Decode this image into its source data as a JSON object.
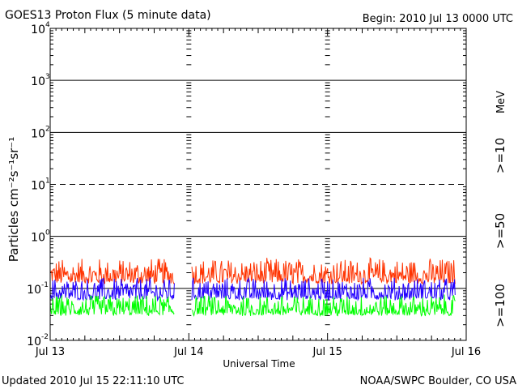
{
  "chart_data": {
    "type": "line",
    "title": "GOES13 Proton Flux (5 minute data)",
    "begin_label": "Begin: 2010 Jul 13 0000 UTC",
    "ylabel": "Particles cm⁻²s⁻¹sr⁻¹",
    "xlabel": "Universal Time",
    "y_scale": "log",
    "ylim": [
      0.01,
      10000
    ],
    "y_ticks": [
      {
        "base": "10",
        "exp": "-2"
      },
      {
        "base": "10",
        "exp": "-1"
      },
      {
        "base": "10",
        "exp": "0"
      },
      {
        "base": "10",
        "exp": "1"
      },
      {
        "base": "10",
        "exp": "2"
      },
      {
        "base": "10",
        "exp": "3"
      },
      {
        "base": "10",
        "exp": "4"
      }
    ],
    "x_ticks": [
      "Jul 13",
      "Jul 14",
      "Jul 15",
      "Jul 16"
    ],
    "xlim_days": [
      0,
      3
    ],
    "data_gap_days": [
      0.9,
      1.02
    ],
    "data_end_day": 2.92,
    "energy_unit": "MeV",
    "series": [
      {
        "name": ">=10",
        "color": "#ff3300",
        "typical_range": [
          0.1,
          0.35
        ]
      },
      {
        "name": ">=50",
        "color": "#2200ff",
        "typical_range": [
          0.05,
          0.15
        ]
      },
      {
        "name": ">=100",
        "color": "#00ff00",
        "typical_range": [
          0.025,
          0.07
        ]
      }
    ]
  },
  "footer": {
    "updated": "Updated 2010 Jul 15 22:11:10 UTC",
    "source": "NOAA/SWPC Boulder, CO USA"
  }
}
